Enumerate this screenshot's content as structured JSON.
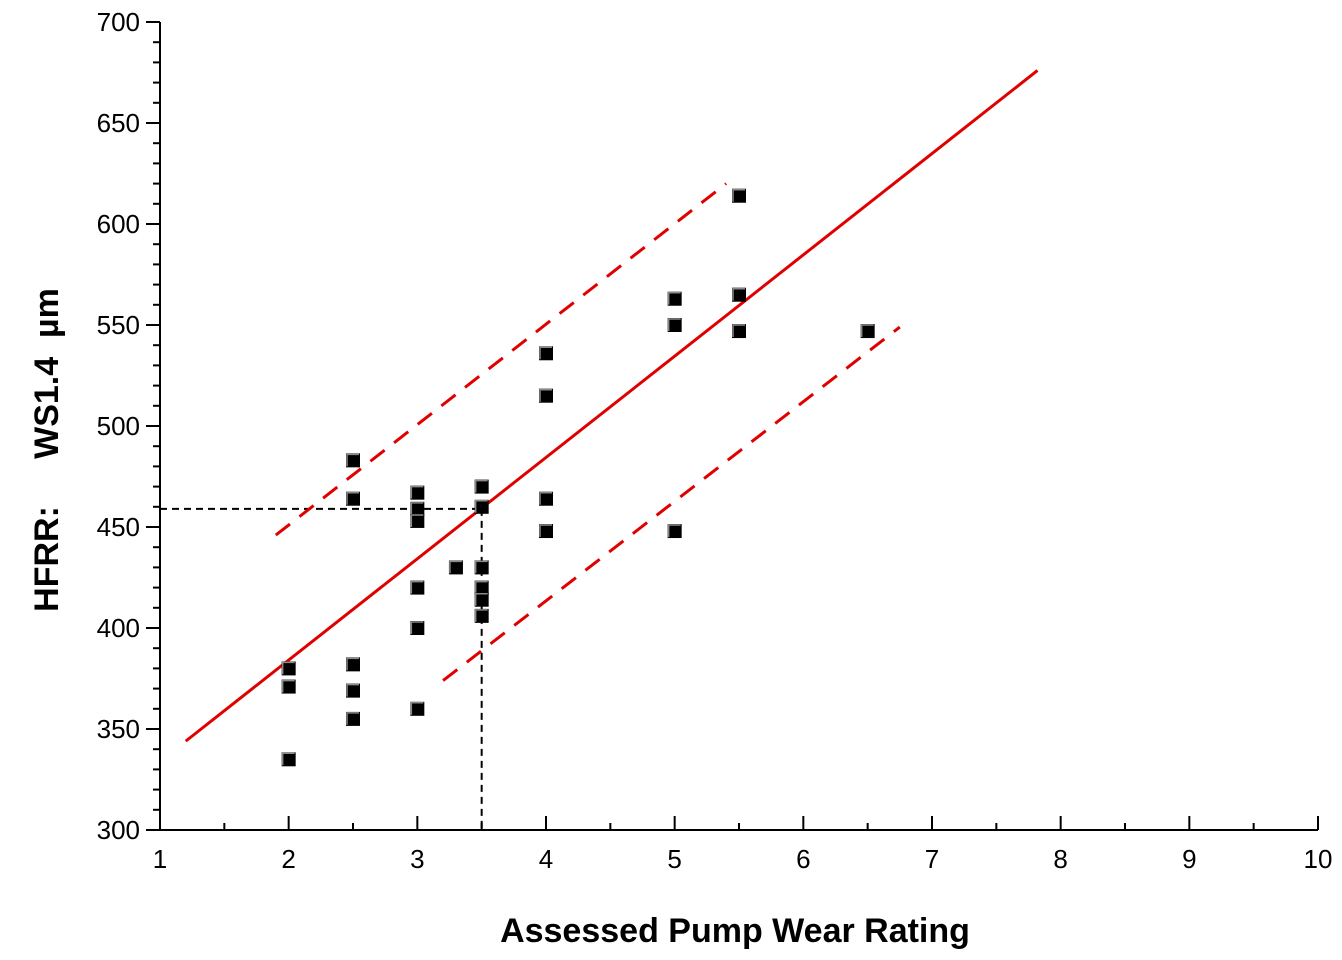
{
  "chart_data": {
    "type": "scatter",
    "title": "",
    "xlabel": "Assessed Pump Wear Rating",
    "ylabel": "HFRR:     WS1.4  µm",
    "xlim": [
      1,
      10
    ],
    "ylim": [
      300,
      700
    ],
    "x_ticks": [
      "1",
      "2",
      "3",
      "4",
      "5",
      "6",
      "7",
      "8",
      "9",
      "10"
    ],
    "y_ticks": [
      "300",
      "350",
      "400",
      "450",
      "500",
      "550",
      "600",
      "650",
      "700"
    ],
    "grid": false,
    "legend": "none",
    "marker_color": "#000000",
    "line_color": "#e00000",
    "points": [
      {
        "x": 2,
        "y": 380
      },
      {
        "x": 2,
        "y": 371
      },
      {
        "x": 2,
        "y": 335
      },
      {
        "x": 2.5,
        "y": 483
      },
      {
        "x": 2.5,
        "y": 464
      },
      {
        "x": 2.5,
        "y": 382
      },
      {
        "x": 2.5,
        "y": 369
      },
      {
        "x": 2.5,
        "y": 355
      },
      {
        "x": 3,
        "y": 467
      },
      {
        "x": 3,
        "y": 459
      },
      {
        "x": 3,
        "y": 453
      },
      {
        "x": 3,
        "y": 420
      },
      {
        "x": 3,
        "y": 400
      },
      {
        "x": 3,
        "y": 360
      },
      {
        "x": 3.3,
        "y": 430
      },
      {
        "x": 3.5,
        "y": 470
      },
      {
        "x": 3.5,
        "y": 460
      },
      {
        "x": 3.5,
        "y": 430
      },
      {
        "x": 3.5,
        "y": 420
      },
      {
        "x": 3.5,
        "y": 414
      },
      {
        "x": 3.5,
        "y": 406
      },
      {
        "x": 4,
        "y": 536
      },
      {
        "x": 4,
        "y": 515
      },
      {
        "x": 4,
        "y": 464
      },
      {
        "x": 4,
        "y": 448
      },
      {
        "x": 5,
        "y": 563
      },
      {
        "x": 5,
        "y": 550
      },
      {
        "x": 5,
        "y": 448
      },
      {
        "x": 5.5,
        "y": 614
      },
      {
        "x": 5.5,
        "y": 565
      },
      {
        "x": 5.5,
        "y": 547
      },
      {
        "x": 6.5,
        "y": 547
      }
    ],
    "fit_line": {
      "x1": 1.2,
      "y1": 344,
      "x2": 7.82,
      "y2": 676
    },
    "upper_bound": {
      "x1": 1.9,
      "y1": 446,
      "x2": 5.4,
      "y2": 620
    },
    "lower_bound": {
      "x1": 3.2,
      "y1": 374,
      "x2": 6.75,
      "y2": 549
    },
    "reference_lines": {
      "x": 3.5,
      "y": 459
    }
  }
}
